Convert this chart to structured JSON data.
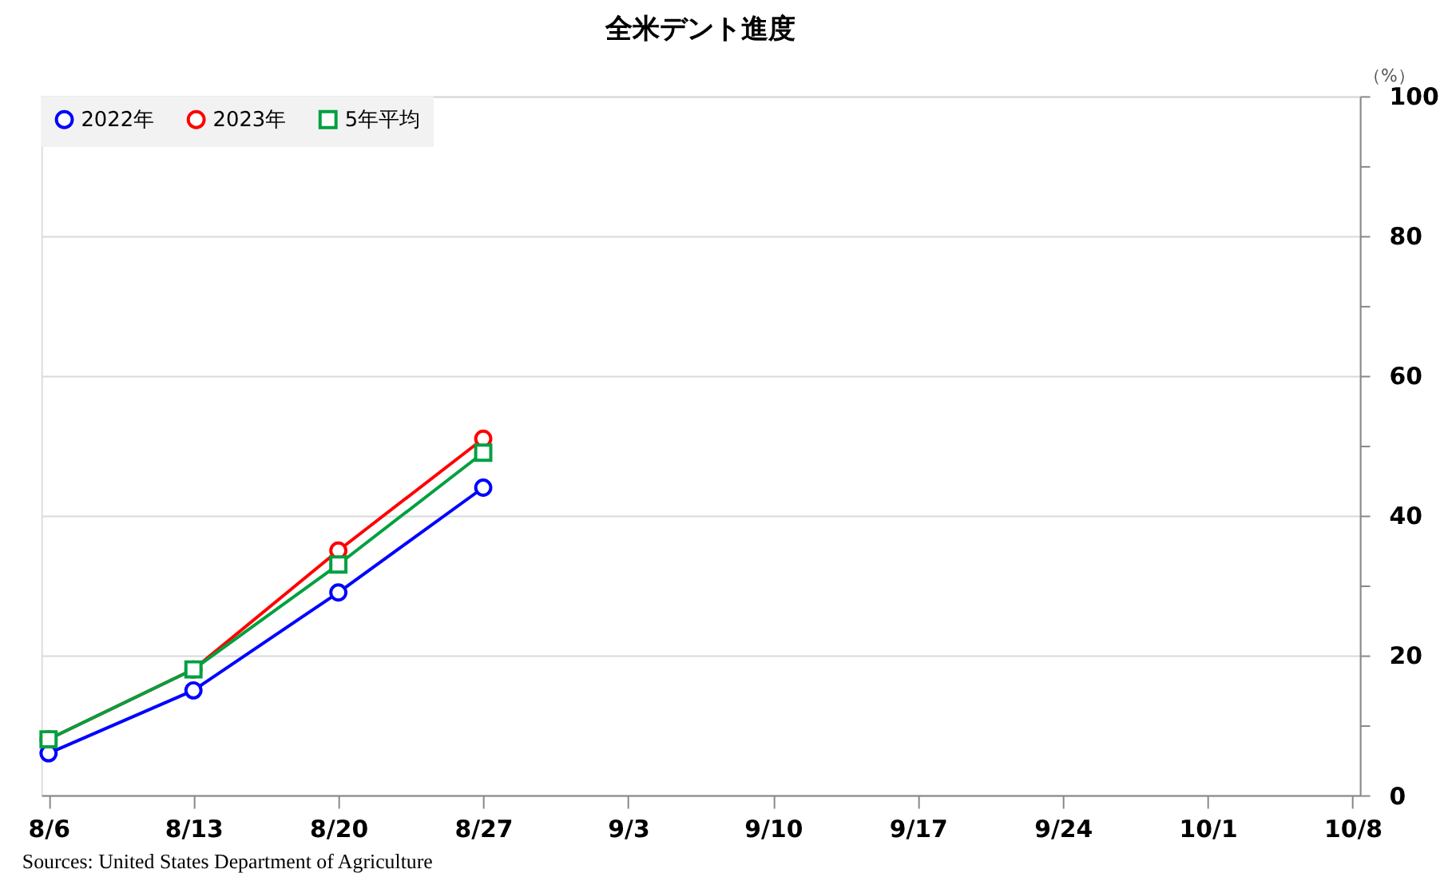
{
  "chart_data": {
    "type": "line",
    "title": "全米デント進度",
    "ylabel": "（%）",
    "categories": [
      "8/6",
      "8/13",
      "8/20",
      "8/27",
      "9/3",
      "9/10",
      "9/17",
      "9/24",
      "10/1",
      "10/8"
    ],
    "series": [
      {
        "name": "2022年",
        "color": "#0000ff",
        "marker": "circle",
        "values": [
          6,
          15,
          29,
          44,
          null,
          null,
          null,
          null,
          null,
          null
        ]
      },
      {
        "name": "2023年",
        "color": "#ff0000",
        "marker": "circle",
        "values": [
          8,
          18,
          35,
          51,
          null,
          null,
          null,
          null,
          null,
          null
        ]
      },
      {
        "name": "5年平均",
        "color": "#00a040",
        "marker": "square",
        "values": [
          8,
          18,
          33,
          49,
          null,
          null,
          null,
          null,
          null,
          null
        ]
      }
    ],
    "ylim": [
      0,
      100
    ],
    "yticks": [
      0,
      {
        "value": 10,
        "label": null
      },
      20,
      {
        "value": 30,
        "label": null
      },
      40,
      {
        "value": 50,
        "label": null
      },
      60,
      {
        "value": 70,
        "label": null
      },
      80,
      {
        "value": 90,
        "label": null
      },
      100
    ],
    "grid": "y",
    "legend": "top left",
    "line_style": "solid",
    "annotations": [
      "Sources: United States Department of Agriculture"
    ]
  }
}
